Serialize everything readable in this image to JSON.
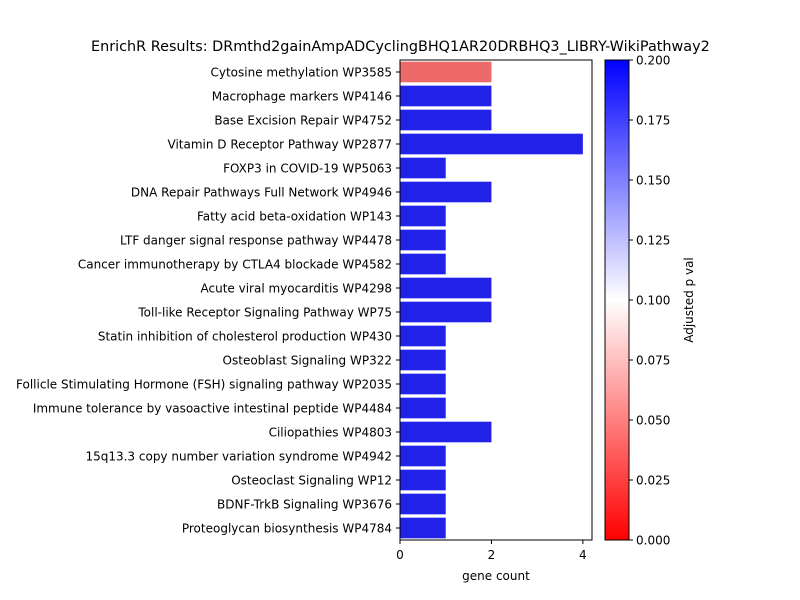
{
  "chart_data": {
    "type": "bar",
    "orientation": "horizontal",
    "title": "EnrichR Results: DRmthd2gainAmpADCyclingBHQ1AR20DRBHQ3_LIBRY-WikiPathway2",
    "xlabel": "gene count",
    "ylabel": "",
    "xlim": [
      0,
      4.2
    ],
    "xticks": [
      0,
      2,
      4
    ],
    "categories": [
      "Cytosine methylation WP3585",
      "Macrophage markers WP4146",
      "Base Excision Repair WP4752",
      "Vitamin D Receptor Pathway WP2877",
      "FOXP3 in COVID-19 WP5063",
      "DNA Repair Pathways Full Network WP4946",
      "Fatty acid beta-oxidation WP143",
      "LTF danger signal response pathway WP4478",
      "Cancer immunotherapy by CTLA4 blockade WP4582",
      "Acute viral myocarditis WP4298",
      "Toll-like Receptor Signaling Pathway WP75",
      "Statin inhibition of cholesterol production WP430",
      "Osteoblast Signaling WP322",
      "Follicle Stimulating Hormone (FSH) signaling pathway WP2035",
      "Immune tolerance by vasoactive intestinal peptide WP4484",
      "Ciliopathies WP4803",
      "15q13.3 copy number variation syndrome WP4942",
      "Osteoclast Signaling WP12",
      "BDNF-TrkB Signaling WP3676",
      "Proteoglycan biosynthesis WP4784"
    ],
    "values": [
      2,
      2,
      2,
      4,
      1,
      2,
      1,
      1,
      1,
      2,
      2,
      1,
      1,
      1,
      1,
      2,
      1,
      1,
      1,
      1
    ],
    "bar_colors": [
      "#ee6a6a",
      "#2121e8",
      "#2121e8",
      "#2121e8",
      "#2121e8",
      "#2121e8",
      "#2121e8",
      "#2121e8",
      "#2121e8",
      "#2121e8",
      "#2121e8",
      "#2121e8",
      "#2121e8",
      "#2121e8",
      "#2121e8",
      "#2121e8",
      "#2121e8",
      "#2121e8",
      "#2121e8",
      "#2121e8"
    ],
    "colorbar": {
      "label": "Adjusted p val",
      "range": [
        0,
        0.2
      ],
      "ticks": [
        "0.000",
        "0.025",
        "0.050",
        "0.075",
        "0.100",
        "0.125",
        "0.150",
        "0.175",
        "0.200"
      ],
      "colors": [
        "#ff0000",
        "#ffffff",
        "#0000ff"
      ]
    },
    "grid": false,
    "legend": "none"
  }
}
